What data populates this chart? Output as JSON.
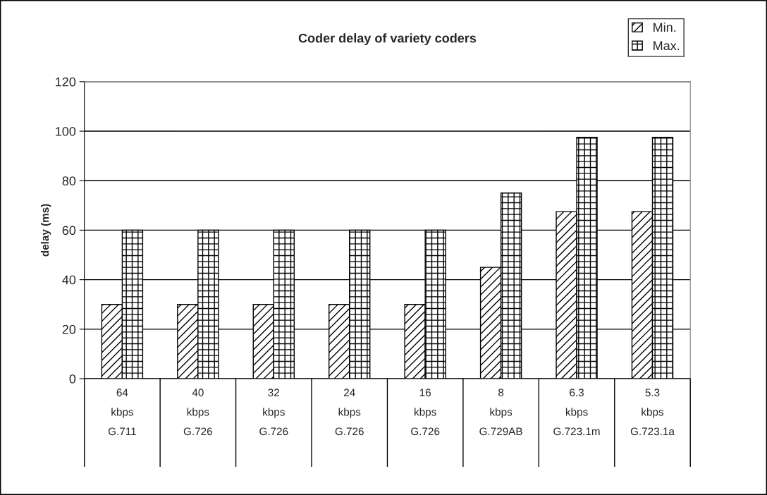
{
  "chart_data": {
    "type": "bar",
    "title": "Coder delay of variety coders",
    "ylabel": "delay (ms)",
    "categories": [
      "64\nkbps\nG.711",
      "40\nkbps\nG.726",
      "32\nkbps\nG.726",
      "24\nkbps\nG.726",
      "16\nkbps\nG.726",
      "8\nkbps\nG.729AB",
      "6.3\nkbps\nG.723.1m",
      "5.3\nkbps\nG.723.1a"
    ],
    "series": [
      {
        "name": "Min.",
        "color": "#000000",
        "values": [
          30,
          30,
          30,
          30,
          30,
          45,
          67.5,
          67.5
        ]
      },
      {
        "name": "Max.",
        "color": "#000000",
        "values": [
          60,
          60,
          60,
          60,
          60,
          75,
          97.5,
          97.5
        ]
      }
    ],
    "ylim": [
      0,
      120
    ],
    "yticks": [
      0,
      20,
      40,
      60,
      80,
      100,
      120
    ],
    "grid": "y",
    "legend": "top right"
  }
}
